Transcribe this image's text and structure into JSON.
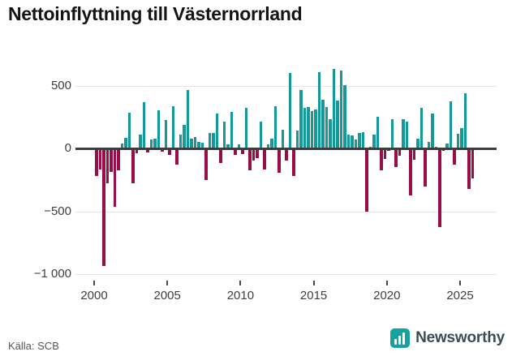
{
  "title": "Nettoinflyttning till Västernorrland",
  "source": "Källa: SCB",
  "branding": {
    "name": "Newsworthy",
    "icon": "bar-chart-icon",
    "icon_color": "#17a2a2"
  },
  "colors": {
    "positive_bar": "#159a9b",
    "negative_bar": "#9b0d47",
    "zero_axis": "#3d3d3d",
    "gridline": "#e4e4e4",
    "title_text": "#141414",
    "axis_text": "#3f3f3f",
    "source_text": "#575757",
    "brand_text": "#3d4a57"
  },
  "chart_data": {
    "type": "bar",
    "title": "Nettoinflyttning till Västernorrland",
    "frequency": "quarterly",
    "start": "2000Q1",
    "end": "2025Q4",
    "xlabel": "",
    "ylabel": "",
    "ylim": [
      -1000,
      700
    ],
    "grid": "horizontal",
    "legend": "none",
    "y_ticks": [
      {
        "value": 500,
        "label": "500"
      },
      {
        "value": 0,
        "label": "0"
      },
      {
        "value": -500,
        "label": "−500"
      },
      {
        "value": -1000,
        "label": "−1 000"
      }
    ],
    "x_ticks": [
      {
        "year": 2000,
        "label": "2000"
      },
      {
        "year": 2005,
        "label": "2005"
      },
      {
        "year": 2010,
        "label": "2010"
      },
      {
        "year": 2015,
        "label": "2015"
      },
      {
        "year": 2020,
        "label": "2020"
      },
      {
        "year": 2025,
        "label": "2025"
      }
    ],
    "values": [
      -210,
      -160,
      -930,
      -270,
      -180,
      -460,
      -170,
      40,
      85,
      285,
      -270,
      -30,
      110,
      365,
      -25,
      70,
      80,
      305,
      -20,
      225,
      -45,
      335,
      -125,
      110,
      190,
      465,
      80,
      90,
      50,
      45,
      -245,
      125,
      125,
      275,
      -110,
      210,
      35,
      290,
      -45,
      35,
      -40,
      320,
      -165,
      -90,
      -70,
      215,
      -160,
      30,
      80,
      335,
      -185,
      150,
      -90,
      600,
      -210,
      145,
      465,
      325,
      330,
      295,
      310,
      605,
      390,
      330,
      230,
      630,
      380,
      620,
      500,
      110,
      100,
      70,
      120,
      130,
      -495,
      10,
      110,
      250,
      -165,
      -80,
      -10,
      230,
      -145,
      -50,
      235,
      210,
      -370,
      -85,
      80,
      320,
      -295,
      50,
      275,
      10,
      -620,
      -15,
      40,
      375,
      -125,
      115,
      160,
      440,
      -315,
      -230
    ]
  }
}
